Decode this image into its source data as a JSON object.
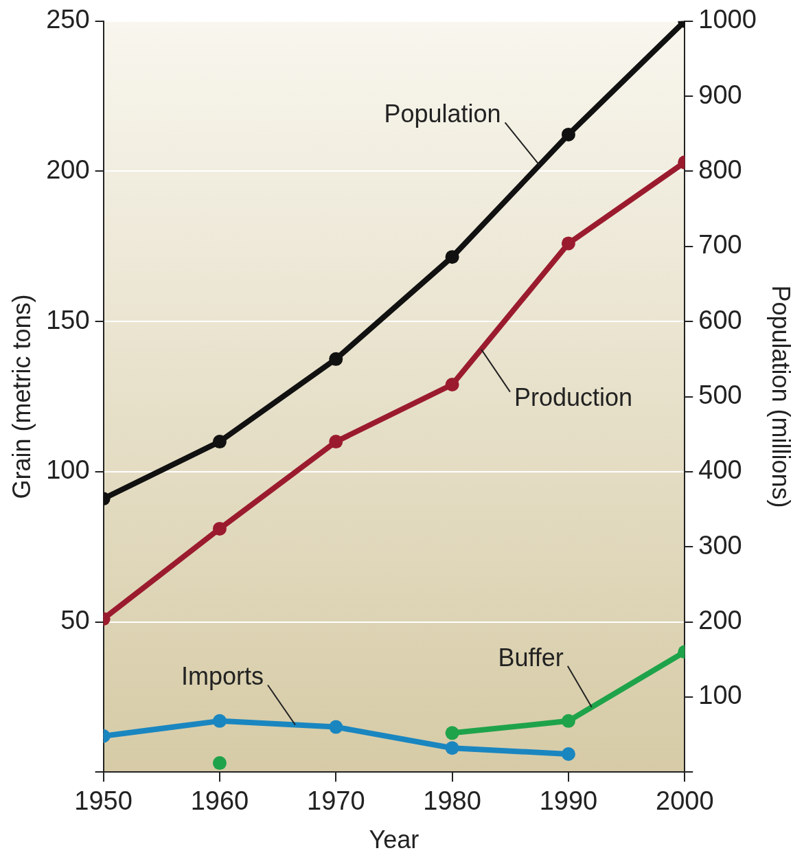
{
  "chart_data": {
    "type": "line",
    "xlabel": "Year",
    "ylabel": "Grain (metric tons)",
    "y2label": "Population (millions)",
    "x": [
      1950,
      1960,
      1970,
      1980,
      1990,
      2000
    ],
    "xlim": [
      1950,
      2000
    ],
    "xticks": [
      1950,
      1960,
      1970,
      1980,
      1990,
      2000
    ],
    "ylim": [
      0,
      250
    ],
    "yticks": [
      {
        "value": 0,
        "label": null
      },
      50,
      100,
      150,
      200,
      250
    ],
    "y2lim": [
      0,
      1000
    ],
    "y2ticks": [
      {
        "value": 0,
        "label": null
      },
      100,
      200,
      300,
      400,
      500,
      600,
      700,
      800,
      900,
      1000
    ],
    "grid": "y",
    "legend": false,
    "marker": "circle",
    "line_style": "solid",
    "series": [
      {
        "name": "Population",
        "color": "#111111",
        "axis": "y2",
        "values": [
          364,
          440,
          550,
          686,
          849,
          1000
        ]
      },
      {
        "name": "Production",
        "color": "#9b1b2e",
        "values": [
          51,
          81,
          110,
          129,
          176,
          203
        ]
      },
      {
        "name": "Imports",
        "color": "#1a86c0",
        "values": [
          12,
          17,
          15,
          8,
          6,
          null
        ]
      },
      {
        "name": "Buffer",
        "color": "#1fa34a",
        "values": [
          null,
          3,
          null,
          13,
          17,
          40
        ]
      }
    ]
  }
}
